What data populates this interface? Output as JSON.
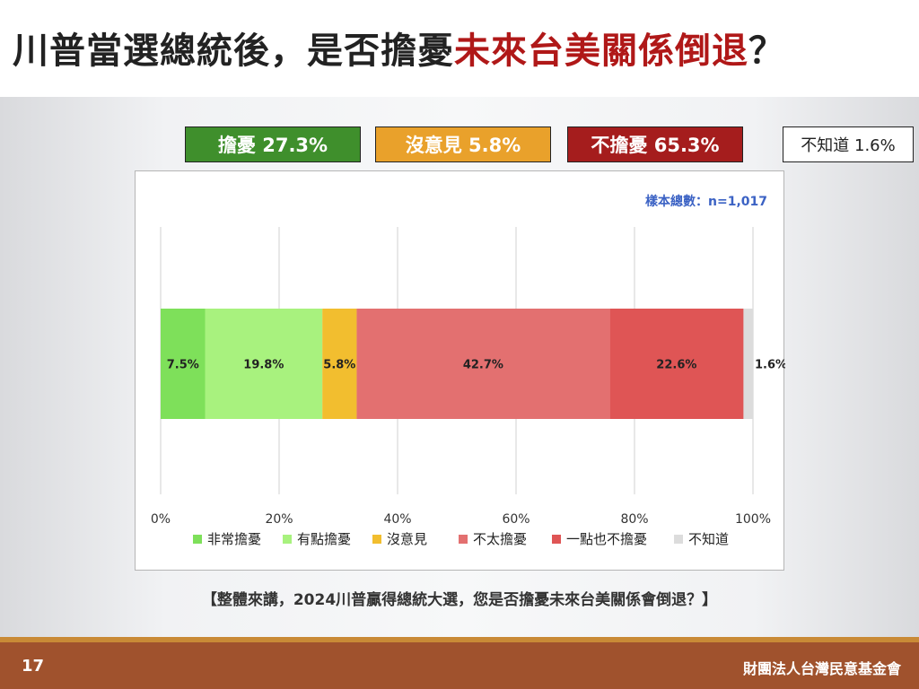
{
  "slide": {
    "title_part1": "川普當選總統後，是否擔憂",
    "title_part2": "未來台美關係倒退",
    "title_part3": "？",
    "question": "【整體來講，2024川普贏得總統大選，您是否擔憂未來台美關係會倒退？】",
    "page_number": "17",
    "organization": "財團法人台灣民意基金會"
  },
  "summary_badges": [
    {
      "label": "擔憂 27.3%",
      "color": "#3f8f2c"
    },
    {
      "label": "沒意見 5.8%",
      "color": "#e9a12b"
    },
    {
      "label": "不擔憂 65.3%",
      "color": "#a51d1d"
    },
    {
      "label": "不知道 1.6%",
      "color": "#ffffff"
    }
  ],
  "chart_data": {
    "type": "bar",
    "orientation": "horizontal-stacked",
    "sample_note": "樣本總數：n=1,017",
    "x_ticks": [
      "0%",
      "20%",
      "40%",
      "60%",
      "80%",
      "100%"
    ],
    "xlim": [
      0,
      100
    ],
    "grid": true,
    "legend_position": "bottom",
    "series": [
      {
        "name": "非常擔憂",
        "value": 7.5,
        "label": "7.5%",
        "color": "#7ee05a"
      },
      {
        "name": "有點擔憂",
        "value": 19.8,
        "label": "19.8%",
        "color": "#a8f27e"
      },
      {
        "name": "沒意見",
        "value": 5.8,
        "label": "5.8%",
        "color": "#f2be2f"
      },
      {
        "name": "不太擔憂",
        "value": 42.7,
        "label": "42.7%",
        "color": "#e37070"
      },
      {
        "name": "一點也不擔憂",
        "value": 22.6,
        "label": "22.6%",
        "color": "#df5555"
      },
      {
        "name": "不知道",
        "value": 1.6,
        "label": "1.6%",
        "color": "#dcdcdc"
      }
    ]
  }
}
